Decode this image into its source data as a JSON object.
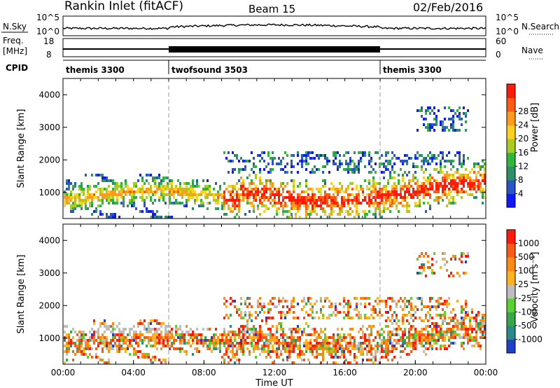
{
  "header": {
    "title": "Rankin Inlet (fitACF)",
    "beam": "Beam 15",
    "date": "02/Feb/2016"
  },
  "panels": {
    "nsky": {
      "label": "N.Sky",
      "right_label": "N.Search",
      "left_ticks": [
        "10^5",
        "10^0"
      ],
      "right_ticks": [
        "10^5",
        "10^0"
      ]
    },
    "freq": {
      "label": "Freq.",
      "unit": "[MHz]",
      "left_ticks": [
        "18",
        "8"
      ],
      "right_ticks": [
        "60",
        "0"
      ],
      "right_label": "Nave"
    },
    "cpid": {
      "label": "CPID",
      "segments": [
        {
          "name": "themis 3300",
          "start_h": 0,
          "end_h": 6
        },
        {
          "name": "twofsound 3503",
          "start_h": 6,
          "end_h": 18
        },
        {
          "name": "themis 3300",
          "start_h": 18,
          "end_h": 24
        }
      ]
    }
  },
  "chart_data": [
    {
      "type": "heatmap",
      "name": "power",
      "ylabel": "Slant Range [km]",
      "ylim": [
        200,
        4500
      ],
      "yticks": [
        "1000",
        "2000",
        "3000",
        "4000"
      ],
      "xlim": [
        0,
        24
      ],
      "colorbar_label": "Power [dB]",
      "colorbar_ticks": [
        "4",
        "8",
        "12",
        "16",
        "20",
        "24",
        "28"
      ],
      "colorbar_colors": [
        "#1018ff",
        "#2a55c8",
        "#2f8f66",
        "#2db83a",
        "#a8cc22",
        "#ffd11a",
        "#ff9a1a",
        "#ff5a12",
        "#ff1a0a"
      ]
    },
    {
      "type": "heatmap",
      "name": "velocity",
      "ylabel": "Slant Range [km]",
      "ylim": [
        200,
        4500
      ],
      "yticks": [
        "1000",
        "2000",
        "3000",
        "4000"
      ],
      "xlim": [
        0,
        24
      ],
      "xticks": [
        "00:00",
        "04:00",
        "08:00",
        "12:00",
        "16:00",
        "20:00",
        "00:00"
      ],
      "xlabel": "Time UT",
      "colorbar_label": "Velocity [m s⁻¹]",
      "colorbar_ticks": [
        "1000",
        "500",
        "100",
        "25",
        "-25",
        "-100",
        "-500",
        "-1000"
      ],
      "colorbar_colors": [
        "#2040c8",
        "#2a8a8a",
        "#3aa64a",
        "#5cd032",
        "#bebebe",
        "#ffb21a",
        "#ff8a12",
        "#ff5a12",
        "#ff1a0a"
      ]
    }
  ]
}
